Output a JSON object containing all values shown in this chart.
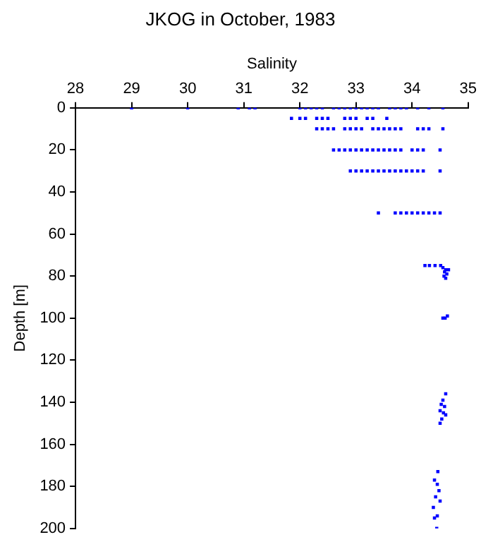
{
  "chart_data": {
    "type": "scatter",
    "title": "JKOG in October, 1983",
    "xlabel": "Salinity",
    "ylabel": "Depth [m]",
    "xlim": [
      28,
      35
    ],
    "xticks": [
      28,
      29,
      30,
      31,
      32,
      33,
      34,
      35
    ],
    "ylim": [
      200,
      0
    ],
    "yticks": [
      0,
      20,
      40,
      60,
      80,
      100,
      120,
      140,
      160,
      180,
      200
    ],
    "grid": false,
    "legend": false,
    "marker": "square",
    "series": [
      {
        "color": "#0000ff",
        "x": [
          29.0,
          30.0,
          30.9,
          31.1,
          31.2,
          32.0,
          32.1,
          32.2,
          32.3,
          32.4,
          32.6,
          32.7,
          32.8,
          32.9,
          33.0,
          33.1,
          33.2,
          33.3,
          33.4,
          33.6,
          33.7,
          33.8,
          33.9,
          34.1,
          34.3,
          34.55,
          31.85,
          32.0,
          32.1,
          32.3,
          32.4,
          32.5,
          32.8,
          32.9,
          33.0,
          33.2,
          33.3,
          33.55,
          32.3,
          32.4,
          32.5,
          32.6,
          32.8,
          32.9,
          33.0,
          33.1,
          33.3,
          33.4,
          33.5,
          33.6,
          33.7,
          33.8,
          34.1,
          34.2,
          34.3,
          34.55,
          32.6,
          32.7,
          32.8,
          32.9,
          33.0,
          33.1,
          33.2,
          33.3,
          33.4,
          33.5,
          33.6,
          33.7,
          33.8,
          34.0,
          34.1,
          34.2,
          34.5,
          32.9,
          33.0,
          33.1,
          33.2,
          33.3,
          33.4,
          33.5,
          33.6,
          33.7,
          33.8,
          33.9,
          34.0,
          34.1,
          34.2,
          34.5,
          33.4,
          33.7,
          33.8,
          33.9,
          34.0,
          34.1,
          34.2,
          34.3,
          34.4,
          34.5,
          34.23,
          34.31,
          34.41,
          34.51,
          34.55,
          34.6,
          34.65,
          34.58,
          34.62,
          34.57,
          34.6,
          34.55,
          34.59,
          34.63,
          34.6,
          34.55,
          34.52,
          34.58,
          34.5,
          34.56,
          34.6,
          34.53,
          34.5,
          34.46,
          34.4,
          34.45,
          34.48,
          34.42,
          34.5,
          34.38,
          34.45,
          34.4,
          34.44
        ],
        "values": [
          0,
          0,
          0,
          0,
          0,
          0,
          0,
          0,
          0,
          0,
          0,
          0,
          0,
          0,
          0,
          0,
          0,
          0,
          0,
          0,
          0,
          0,
          0,
          0,
          0,
          0,
          5,
          5,
          5,
          5,
          5,
          5,
          5,
          5,
          5,
          5,
          5,
          5,
          10,
          10,
          10,
          10,
          10,
          10,
          10,
          10,
          10,
          10,
          10,
          10,
          10,
          10,
          10,
          10,
          10,
          10,
          20,
          20,
          20,
          20,
          20,
          20,
          20,
          20,
          20,
          20,
          20,
          20,
          20,
          20,
          20,
          20,
          20,
          30,
          30,
          30,
          30,
          30,
          30,
          30,
          30,
          30,
          30,
          30,
          30,
          30,
          30,
          30,
          50,
          50,
          50,
          50,
          50,
          50,
          50,
          50,
          50,
          50,
          75,
          75,
          75,
          75,
          76,
          77,
          77,
          78,
          79,
          80,
          81,
          100,
          100,
          99,
          136,
          139,
          141,
          142,
          144,
          145,
          146,
          148,
          150,
          173,
          177,
          179,
          182,
          185,
          187,
          190,
          194,
          195,
          200
        ]
      }
    ]
  }
}
